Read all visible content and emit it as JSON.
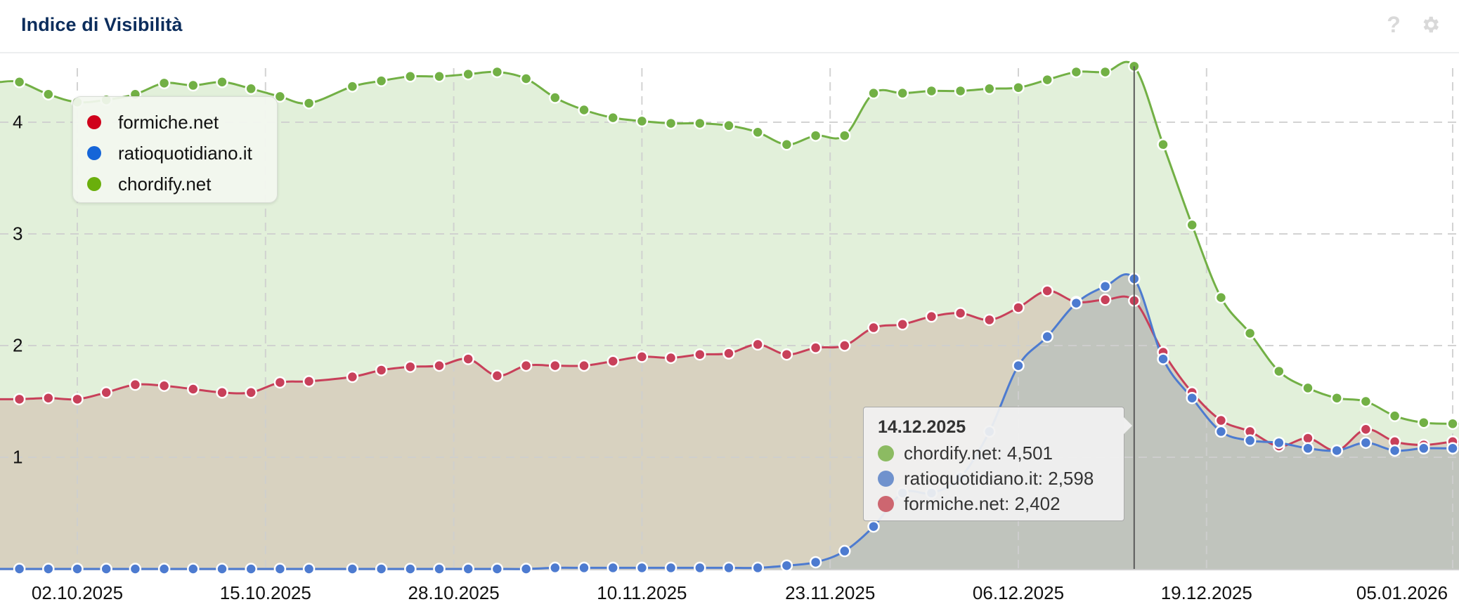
{
  "header": {
    "title": "Indice di Visibilità",
    "help_icon": "question-icon",
    "settings_icon": "gear-icon",
    "help_glyph": "?"
  },
  "legend": {
    "items": [
      {
        "label": "formiche.net",
        "color": "#d0021b"
      },
      {
        "label": "ratioquotidiano.it",
        "color": "#1565d8"
      },
      {
        "label": "chordify.net",
        "color": "#6aaf0c"
      }
    ]
  },
  "tooltip": {
    "date": "14.12.2025",
    "rows": [
      {
        "label": "chordify.net: 4,501",
        "color": "#8cbb62"
      },
      {
        "label": "ratioquotidiano.it: 2,598",
        "color": "#7092cd"
      },
      {
        "label": "formiche.net: 2,402",
        "color": "#cd6670"
      }
    ]
  },
  "chart_data": {
    "type": "area",
    "title": "Indice di Visibilità",
    "xlabel": "",
    "ylabel": "",
    "ylim": [
      0,
      4.6
    ],
    "y_ticks": [
      1,
      2,
      3,
      4
    ],
    "x_ticks": [
      "02.10.2025",
      "15.10.2025",
      "28.10.2025",
      "10.11.2025",
      "23.11.2025",
      "06.12.2025",
      "19.12.2025",
      "05.01.2026"
    ],
    "x_tick_day_offsets": [
      0,
      13,
      26,
      39,
      52,
      65,
      78,
      95
    ],
    "grid": true,
    "legend_position": "top-left",
    "hover": {
      "date": "14.12.2025",
      "day_offset": 73
    },
    "x_unit": "days since 02.10.2025",
    "series": [
      {
        "name": "chordify.net",
        "line_color": "#72b045",
        "fill_color": "#e2f0da",
        "points": [
          [
            -4,
            4.36
          ],
          [
            -2,
            4.25
          ],
          [
            0,
            4.18
          ],
          [
            2,
            4.2
          ],
          [
            4,
            4.25
          ],
          [
            6,
            4.35
          ],
          [
            8,
            4.33
          ],
          [
            10,
            4.36
          ],
          [
            12,
            4.3
          ],
          [
            14,
            4.23
          ],
          [
            16,
            4.17
          ],
          [
            19,
            4.32
          ],
          [
            21,
            4.37
          ],
          [
            23,
            4.41
          ],
          [
            25,
            4.41
          ],
          [
            27,
            4.43
          ],
          [
            29,
            4.45
          ],
          [
            31,
            4.39
          ],
          [
            33,
            4.22
          ],
          [
            35,
            4.11
          ],
          [
            37,
            4.04
          ],
          [
            39,
            4.01
          ],
          [
            41,
            3.99
          ],
          [
            43,
            3.99
          ],
          [
            45,
            3.97
          ],
          [
            47,
            3.91
          ],
          [
            49,
            3.8
          ],
          [
            51,
            3.88
          ],
          [
            53,
            3.88
          ],
          [
            55,
            4.26
          ],
          [
            57,
            4.26
          ],
          [
            59,
            4.28
          ],
          [
            61,
            4.28
          ],
          [
            63,
            4.3
          ],
          [
            65,
            4.31
          ],
          [
            67,
            4.38
          ],
          [
            69,
            4.45
          ],
          [
            71,
            4.45
          ],
          [
            73,
            4.501
          ],
          [
            75,
            3.8
          ],
          [
            77,
            3.08
          ],
          [
            79,
            2.43
          ],
          [
            81,
            2.11
          ],
          [
            83,
            1.77
          ],
          [
            85,
            1.62
          ],
          [
            87,
            1.53
          ],
          [
            89,
            1.5
          ],
          [
            91,
            1.37
          ],
          [
            93,
            1.31
          ],
          [
            95,
            1.3
          ]
        ]
      },
      {
        "name": "ratioquotidiano.it",
        "line_color": "#4d7bd0",
        "fill_color": "#bfc3bd",
        "points": [
          [
            -4,
            0.0
          ],
          [
            -2,
            0.0
          ],
          [
            0,
            0.0
          ],
          [
            2,
            0.0
          ],
          [
            4,
            0.0
          ],
          [
            6,
            0.0
          ],
          [
            8,
            0.0
          ],
          [
            10,
            0.0
          ],
          [
            12,
            0.0
          ],
          [
            14,
            0.0
          ],
          [
            16,
            0.0
          ],
          [
            19,
            0.0
          ],
          [
            21,
            0.0
          ],
          [
            23,
            0.0
          ],
          [
            25,
            0.0
          ],
          [
            27,
            0.0
          ],
          [
            29,
            0.0
          ],
          [
            31,
            0.0
          ],
          [
            33,
            0.01
          ],
          [
            35,
            0.01
          ],
          [
            37,
            0.01
          ],
          [
            39,
            0.01
          ],
          [
            41,
            0.01
          ],
          [
            43,
            0.01
          ],
          [
            45,
            0.01
          ],
          [
            47,
            0.01
          ],
          [
            49,
            0.03
          ],
          [
            51,
            0.06
          ],
          [
            53,
            0.16
          ],
          [
            55,
            0.38
          ],
          [
            57,
            0.68
          ],
          [
            59,
            0.68
          ],
          [
            61,
            0.82
          ],
          [
            63,
            1.23
          ],
          [
            65,
            1.82
          ],
          [
            67,
            2.08
          ],
          [
            69,
            2.38
          ],
          [
            71,
            2.53
          ],
          [
            73,
            2.598
          ],
          [
            75,
            1.88
          ],
          [
            77,
            1.53
          ],
          [
            79,
            1.23
          ],
          [
            81,
            1.15
          ],
          [
            83,
            1.13
          ],
          [
            85,
            1.08
          ],
          [
            87,
            1.06
          ],
          [
            89,
            1.13
          ],
          [
            91,
            1.06
          ],
          [
            93,
            1.08
          ],
          [
            95,
            1.08
          ]
        ]
      },
      {
        "name": "formiche.net",
        "line_color": "#c8405a",
        "fill_color": "#d8d2c0",
        "points": [
          [
            -4,
            1.52
          ],
          [
            -2,
            1.53
          ],
          [
            0,
            1.52
          ],
          [
            2,
            1.58
          ],
          [
            4,
            1.65
          ],
          [
            6,
            1.64
          ],
          [
            8,
            1.61
          ],
          [
            10,
            1.58
          ],
          [
            12,
            1.58
          ],
          [
            14,
            1.67
          ],
          [
            16,
            1.68
          ],
          [
            19,
            1.72
          ],
          [
            21,
            1.78
          ],
          [
            23,
            1.81
          ],
          [
            25,
            1.82
          ],
          [
            27,
            1.88
          ],
          [
            29,
            1.73
          ],
          [
            31,
            1.82
          ],
          [
            33,
            1.82
          ],
          [
            35,
            1.82
          ],
          [
            37,
            1.86
          ],
          [
            39,
            1.9
          ],
          [
            41,
            1.89
          ],
          [
            43,
            1.92
          ],
          [
            45,
            1.93
          ],
          [
            47,
            2.01
          ],
          [
            49,
            1.92
          ],
          [
            51,
            1.98
          ],
          [
            53,
            2.0
          ],
          [
            55,
            2.16
          ],
          [
            57,
            2.19
          ],
          [
            59,
            2.26
          ],
          [
            61,
            2.29
          ],
          [
            63,
            2.23
          ],
          [
            65,
            2.34
          ],
          [
            67,
            2.49
          ],
          [
            69,
            2.39
          ],
          [
            71,
            2.41
          ],
          [
            73,
            2.402
          ],
          [
            75,
            1.94
          ],
          [
            77,
            1.58
          ],
          [
            79,
            1.33
          ],
          [
            81,
            1.23
          ],
          [
            83,
            1.1
          ],
          [
            85,
            1.17
          ],
          [
            87,
            1.06
          ],
          [
            89,
            1.25
          ],
          [
            91,
            1.14
          ],
          [
            93,
            1.11
          ],
          [
            95,
            1.14
          ]
        ]
      }
    ]
  },
  "colors": {
    "title": "#0c2d5c",
    "grid": "#cfcfcf",
    "hover_line": "#5a5a5a"
  }
}
